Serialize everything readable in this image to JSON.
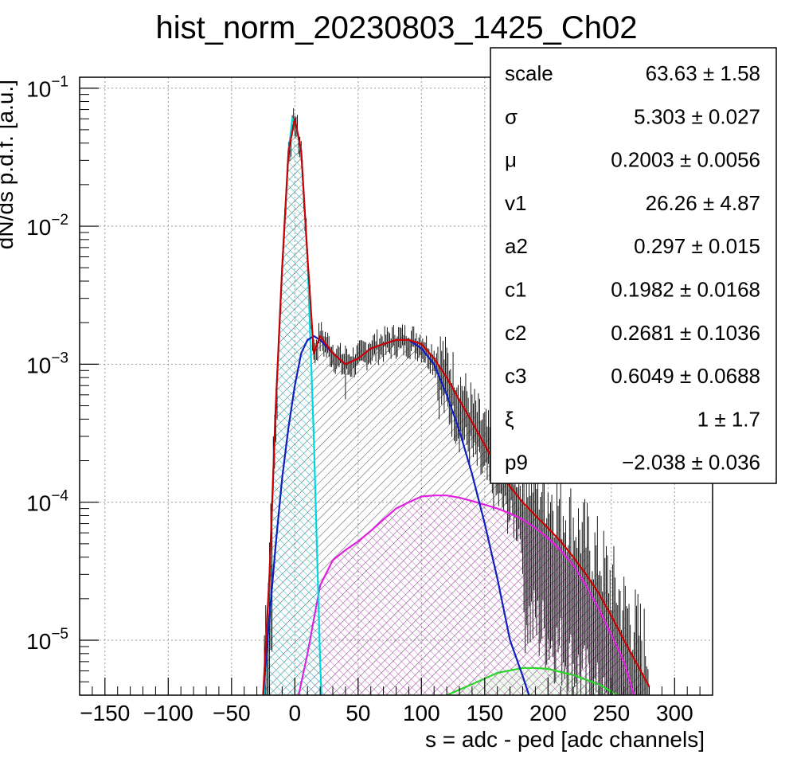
{
  "chart_data": {
    "type": "line",
    "title": "hist_norm_20230803_1425_Ch02",
    "xlabel": "s = adc - ped [adc channels]",
    "ylabel": "dN/ds p.d.f. [a.u.]",
    "xlim": [
      -170,
      330
    ],
    "ylim": [
      4e-06,
      0.12
    ],
    "yscale": "log",
    "grid": true,
    "x_ticks": [
      -150,
      -100,
      -50,
      0,
      50,
      100,
      150,
      200,
      250,
      300
    ],
    "x_tick_labels": [
      "−150",
      "−100",
      "−50",
      "0",
      "50",
      "100",
      "150",
      "200",
      "250",
      "300"
    ],
    "y_ticks": [
      {
        "value": 0.1,
        "base": "10",
        "exp": "−1"
      },
      {
        "value": 0.01,
        "base": "10",
        "exp": "−2"
      },
      {
        "value": 0.001,
        "base": "10",
        "exp": "−3"
      },
      {
        "value": 0.0001,
        "base": "10",
        "exp": "−4"
      },
      {
        "value": 1e-05,
        "base": "10",
        "exp": "−5"
      }
    ],
    "series": [
      {
        "color": "#cc0000",
        "x": [
          -25,
          -20,
          -15,
          -10,
          -5,
          0,
          5,
          10,
          15,
          20,
          30,
          40,
          50,
          60,
          70,
          80,
          90,
          100,
          110,
          120,
          130,
          140,
          150,
          160,
          170,
          180,
          190,
          200,
          210,
          220,
          230,
          240,
          250,
          260,
          270,
          280
        ],
        "y": [
          4e-06,
          3e-05,
          0.0005,
          0.005,
          0.035,
          0.06,
          0.035,
          0.006,
          0.0012,
          0.0016,
          0.0012,
          0.001,
          0.0011,
          0.0013,
          0.0014,
          0.0015,
          0.0015,
          0.0014,
          0.0011,
          0.0008,
          0.00055,
          0.00038,
          0.00026,
          0.00018,
          0.00013,
          0.0001,
          8e-05,
          6.5e-05,
          5.2e-05,
          4e-05,
          3e-05,
          2.2e-05,
          1.5e-05,
          1e-05,
          6.8e-06,
          4.6e-06
        ]
      },
      {
        "color": "#1020c0",
        "x": [
          -25,
          -20,
          -15,
          -10,
          -5,
          0,
          5,
          10,
          15,
          20,
          30,
          40,
          50,
          60,
          70,
          80,
          90,
          100,
          110,
          120,
          130,
          140,
          150,
          160,
          170,
          180,
          185
        ],
        "y": [
          4e-06,
          1.5e-05,
          5e-05,
          0.00015,
          0.00035,
          0.0007,
          0.0012,
          0.0015,
          0.0016,
          0.0015,
          0.0012,
          0.001,
          0.0011,
          0.0013,
          0.0014,
          0.0015,
          0.0015,
          0.0013,
          0.001,
          0.0006,
          0.00033,
          0.00016,
          7e-05,
          2.8e-05,
          1e-05,
          5.5e-06,
          4e-06
        ]
      },
      {
        "color": "#00d8e0",
        "fill": true,
        "x": [
          -24,
          -20,
          -15,
          -10,
          -5,
          -2,
          0,
          5,
          10,
          15,
          20,
          21
        ],
        "y": [
          4e-06,
          3e-05,
          0.0005,
          0.005,
          0.035,
          0.06,
          0.058,
          0.035,
          0.006,
          0.0003,
          7e-06,
          4e-06
        ]
      },
      {
        "color": "#e020e0",
        "fill": true,
        "x": [
          3,
          10,
          20,
          30,
          40,
          50,
          60,
          70,
          80,
          90,
          100,
          110,
          120,
          130,
          140,
          150,
          160,
          170,
          180,
          190,
          200,
          210,
          220,
          230,
          240,
          250,
          260,
          268
        ],
        "y": [
          4e-06,
          8e-06,
          2.5e-05,
          3.8e-05,
          4.5e-05,
          5.2e-05,
          6.2e-05,
          7.5e-05,
          9e-05,
          0.0001,
          0.00011,
          0.000112,
          0.000112,
          0.000108,
          0.000102,
          9.6e-05,
          9e-05,
          8.3e-05,
          7.5e-05,
          6.5e-05,
          5.5e-05,
          4.5e-05,
          3.5e-05,
          2.5e-05,
          1.7e-05,
          1.1e-05,
          7e-06,
          4e-06
        ]
      },
      {
        "color": "#20dd20",
        "fill": true,
        "x": [
          120,
          140,
          160,
          180,
          190,
          200,
          220,
          240,
          255
        ],
        "y": [
          4e-06,
          4.8e-06,
          5.8e-06,
          6.3e-06,
          6.3e-06,
          6.2e-06,
          5.6e-06,
          4.8e-06,
          4e-06
        ]
      }
    ]
  },
  "stats_box": {
    "rows": [
      {
        "name": "scale",
        "value": "63.63",
        "err": "1.58"
      },
      {
        "name": "σ",
        "value": "5.303",
        "err": "0.027"
      },
      {
        "name": "μ",
        "value": "0.2003",
        "err": "0.0056"
      },
      {
        "name": "v1",
        "value": "26.26",
        "err": "4.87"
      },
      {
        "name": "a2",
        "value": "0.297",
        "err": "0.015"
      },
      {
        "name": "c1",
        "value": "0.1982",
        "err": "0.0168"
      },
      {
        "name": "c2",
        "value": "0.2681",
        "err": "0.1036"
      },
      {
        "name": "c3",
        "value": "0.6049",
        "err": "0.0688"
      },
      {
        "name": "ξ",
        "value": "1",
        "err": "1.7"
      },
      {
        "name": "p9",
        "value": "−2.038",
        "err": "0.036"
      }
    ],
    "pm": "±"
  }
}
